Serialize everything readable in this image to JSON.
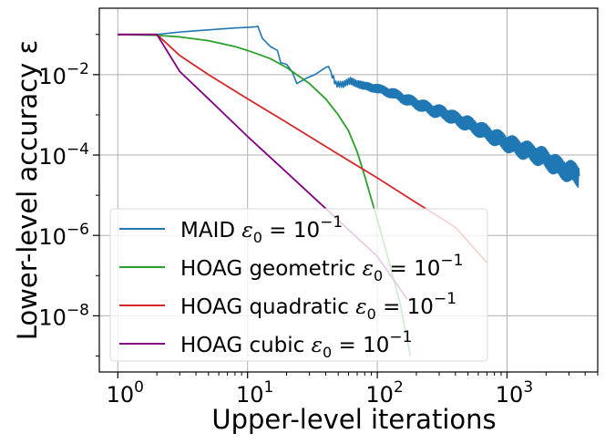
{
  "chart_data": {
    "type": "line",
    "xlabel": "Upper-level iterations",
    "ylabel": "Lower-level accuracy ε",
    "xscale": "log",
    "yscale": "log",
    "xlim": [
      0.72,
      5000
    ],
    "ylim": [
      4e-10,
      0.45
    ],
    "grid": true,
    "legend_position": "lower-left",
    "x_ticks": [
      {
        "value": 1,
        "base": "10",
        "exp": "0"
      },
      {
        "value": 10,
        "base": "10",
        "exp": "1"
      },
      {
        "value": 100,
        "base": "10",
        "exp": "2"
      },
      {
        "value": 1000,
        "base": "10",
        "exp": "3"
      }
    ],
    "y_ticks": [
      {
        "value": 0.01,
        "base": "10",
        "exp": "−2"
      },
      {
        "value": 0.0001,
        "base": "10",
        "exp": "−4"
      },
      {
        "value": 1e-06,
        "base": "10",
        "exp": "−6"
      },
      {
        "value": 1e-08,
        "base": "10",
        "exp": "−8"
      }
    ],
    "series": [
      {
        "name": "MAID ε₀ = 10⁻¹",
        "legend": {
          "prefix": "MAID",
          "eq": " = 10",
          "sup": "−1"
        },
        "color": "#1f77b4",
        "points": [
          [
            1,
            0.1
          ],
          [
            2,
            0.1
          ],
          [
            3,
            0.115
          ],
          [
            5,
            0.13
          ],
          [
            8,
            0.145
          ],
          [
            10,
            0.15
          ],
          [
            11.5,
            0.155
          ],
          [
            12,
            0.16
          ],
          [
            13,
            0.08
          ],
          [
            15,
            0.05
          ],
          [
            17,
            0.04
          ],
          [
            18,
            0.02
          ],
          [
            20,
            0.018
          ],
          [
            22,
            0.012
          ],
          [
            24,
            0.006
          ],
          [
            28,
            0.008
          ],
          [
            33,
            0.01
          ],
          [
            40,
            0.015
          ],
          [
            42,
            0.016
          ],
          [
            45,
            0.01
          ],
          [
            48,
            0.006
          ],
          [
            55,
            0.0055
          ],
          [
            62,
            0.007
          ],
          [
            70,
            0.0062
          ],
          [
            80,
            0.005
          ],
          [
            95,
            0.0048
          ],
          [
            110,
            0.004
          ],
          [
            130,
            0.0035
          ],
          [
            150,
            0.0028
          ],
          [
            180,
            0.0022
          ],
          [
            220,
            0.0017
          ],
          [
            270,
            0.0013
          ],
          [
            330,
            0.0011
          ],
          [
            400,
            0.0008
          ],
          [
            500,
            0.0006
          ],
          [
            600,
            0.00045
          ],
          [
            700,
            0.00035
          ],
          [
            800,
            0.00028
          ],
          [
            1000,
            0.0002
          ],
          [
            1300,
            0.00014
          ],
          [
            1600,
            0.00011
          ],
          [
            2000,
            8e-05
          ],
          [
            2500,
            5e-05
          ],
          [
            3000,
            4e-05
          ],
          [
            3600,
            3e-05
          ]
        ],
        "noise": true
      },
      {
        "name": "HOAG geometric ε₀ = 10⁻¹",
        "legend": {
          "prefix": "HOAG geometric",
          "eq": " = 10",
          "sup": "−1"
        },
        "color": "#2ca02c",
        "points": [
          [
            1,
            0.1
          ],
          [
            2,
            0.095
          ],
          [
            3,
            0.087
          ],
          [
            5,
            0.07
          ],
          [
            8,
            0.05
          ],
          [
            10,
            0.04
          ],
          [
            15,
            0.025
          ],
          [
            20,
            0.015
          ],
          [
            30,
            0.006
          ],
          [
            40,
            0.0025
          ],
          [
            50,
            0.001
          ],
          [
            60,
            0.0004
          ],
          [
            70,
            0.00012
          ],
          [
            80,
            3e-05
          ],
          [
            90,
            8e-06
          ],
          [
            100,
            2.5e-06
          ],
          [
            120,
            3e-07
          ],
          [
            150,
            2e-08
          ],
          [
            180,
            1e-09
          ]
        ]
      },
      {
        "name": "HOAG quadratic ε₀ = 10⁻¹",
        "legend": {
          "prefix": "HOAG quadratic",
          "eq": " = 10",
          "sup": "−1"
        },
        "color": "#d62728",
        "points": [
          [
            1,
            0.1
          ],
          [
            2,
            0.1
          ],
          [
            3,
            0.03
          ],
          [
            5,
            0.01
          ],
          [
            10,
            0.0025
          ],
          [
            20,
            0.00065
          ],
          [
            50,
            0.000105
          ],
          [
            100,
            2.7e-05
          ],
          [
            200,
            6.5e-06
          ],
          [
            400,
            1.6e-06
          ],
          [
            700,
            2.1e-07
          ]
        ]
      },
      {
        "name": "HOAG cubic ε₀ = 10⁻¹",
        "legend": {
          "prefix": "HOAG cubic",
          "eq": " = 10",
          "sup": "−1"
        },
        "color": "#800080",
        "points": [
          [
            1,
            0.1
          ],
          [
            2,
            0.1
          ],
          [
            3,
            0.012
          ],
          [
            5,
            0.0025
          ],
          [
            10,
            0.00029
          ],
          [
            20,
            3.7e-05
          ],
          [
            50,
            2.4e-06
          ],
          [
            100,
            3e-07
          ],
          [
            170,
            2.6e-08
          ]
        ]
      }
    ]
  }
}
